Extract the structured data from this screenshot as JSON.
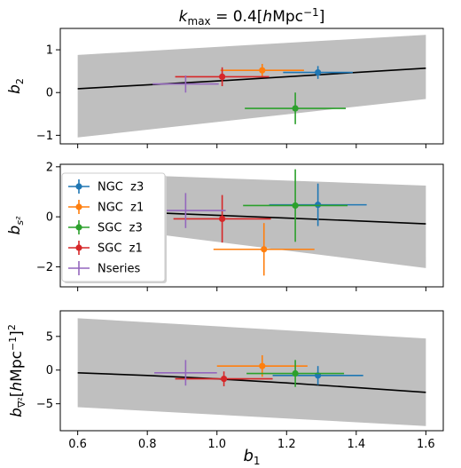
{
  "chart_data": {
    "type": "scatter",
    "title": {
      "base": "k",
      "sub": "max",
      "rest": " = 0.4[",
      "h": "h",
      "unit": "Mpc",
      "sup": "−1",
      "close": "]"
    },
    "xlabel": {
      "base": "b",
      "sub": "1"
    },
    "xlim": [
      0.55,
      1.65
    ],
    "xticks": [
      0.6,
      0.8,
      1.0,
      1.2,
      1.4,
      1.6
    ],
    "xtick_labels": [
      "0.6",
      "0.8",
      "1.0",
      "1.2",
      "1.4",
      "1.6"
    ],
    "legend": {
      "placement": "left",
      "entries": [
        {
          "label": "NGC  z3",
          "color": "#1f77b4",
          "marker": "circle"
        },
        {
          "label": "NGC  z1",
          "color": "#ff7f0e",
          "marker": "circle"
        },
        {
          "label": "SGC  z3",
          "color": "#2ca02c",
          "marker": "circle"
        },
        {
          "label": "SGC  z1",
          "color": "#d62728",
          "marker": "circle"
        },
        {
          "label": "Nseries",
          "color": "#9467bd",
          "marker": "plus"
        }
      ]
    },
    "panels": [
      {
        "ylabel": {
          "base": "b",
          "sub": "2"
        },
        "ylim": [
          -1.2,
          1.5
        ],
        "yticks": [
          -1,
          0,
          1
        ],
        "ytick_labels": [
          "−1",
          "0",
          "1"
        ],
        "band": {
          "x": [
            0.6,
            1.6
          ],
          "lower": [
            -1.05,
            -0.15
          ],
          "upper": [
            0.88,
            1.35
          ],
          "color": "#bfbfbf"
        },
        "curve": {
          "x": [
            0.6,
            0.8,
            1.0,
            1.2,
            1.4,
            1.6
          ],
          "y": [
            0.09,
            0.18,
            0.27,
            0.37,
            0.47,
            0.57
          ],
          "color": "#000000"
        },
        "points": [
          {
            "series": "NGC  z3",
            "x": 1.29,
            "y": 0.47,
            "xerr": 0.1,
            "yerr": 0.15
          },
          {
            "series": "NGC  z1",
            "x": 1.13,
            "y": 0.52,
            "xerr": 0.12,
            "yerr": 0.15
          },
          {
            "series": "SGC  z3",
            "x": 1.225,
            "y": -0.37,
            "xerr": 0.145,
            "yerr": 0.37
          },
          {
            "series": "SGC  z1",
            "x": 1.015,
            "y": 0.37,
            "xerr": 0.135,
            "yerr": 0.22
          },
          {
            "series": "Nseries",
            "x": 0.91,
            "y": 0.2,
            "xerr": 0.095,
            "yerr": 0.2
          }
        ]
      },
      {
        "ylabel": {
          "base": "b",
          "sub": "s²"
        },
        "ylim": [
          -2.8,
          2.1
        ],
        "yticks": [
          -2,
          0,
          2
        ],
        "ytick_labels": [
          "−2",
          "0",
          "2"
        ],
        "band": {
          "x": [
            0.6,
            1.6
          ],
          "lower": [
            -0.3,
            -2.05
          ],
          "upper": [
            1.75,
            1.25
          ],
          "color": "#bfbfbf"
        },
        "curve": {
          "x": [
            0.6,
            0.8,
            1.0,
            1.2,
            1.4,
            1.6
          ],
          "y": [
            0.28,
            0.17,
            0.06,
            -0.05,
            -0.16,
            -0.28
          ],
          "color": "#000000"
        },
        "points": [
          {
            "series": "NGC  z3",
            "x": 1.29,
            "y": 0.48,
            "xerr": 0.14,
            "yerr": 0.85
          },
          {
            "series": "NGC  z1",
            "x": 1.135,
            "y": -1.3,
            "xerr": 0.145,
            "yerr": 1.05
          },
          {
            "series": "SGC  z3",
            "x": 1.225,
            "y": 0.45,
            "xerr": 0.15,
            "yerr": 1.45
          },
          {
            "series": "SGC  z1",
            "x": 1.015,
            "y": -0.08,
            "xerr": 0.14,
            "yerr": 0.95
          },
          {
            "series": "Nseries",
            "x": 0.91,
            "y": 0.25,
            "xerr": 0.115,
            "yerr": 0.7
          }
        ]
      },
      {
        "ylabel": {
          "base": "b",
          "sub": "∇²",
          "rest": "[",
          "h": "h",
          "unit": "Mpc",
          "sup1": "−1",
          "close": "]",
          "sup2": "2"
        },
        "ylim": [
          -9,
          8.8
        ],
        "yticks": [
          -5,
          0,
          5
        ],
        "ytick_labels": [
          "−5",
          "0",
          "5"
        ],
        "band": {
          "x": [
            0.6,
            1.6
          ],
          "lower": [
            -5.5,
            -8.3
          ],
          "upper": [
            7.7,
            4.7
          ],
          "color": "#bfbfbf"
        },
        "curve": {
          "x": [
            0.6,
            0.8,
            1.0,
            1.2,
            1.4,
            1.6
          ],
          "y": [
            -0.4,
            -0.8,
            -1.3,
            -1.9,
            -2.6,
            -3.3
          ],
          "color": "#000000"
        },
        "points": [
          {
            "series": "NGC  z3",
            "x": 1.29,
            "y": -0.8,
            "xerr": 0.13,
            "yerr": 1.4
          },
          {
            "series": "NGC  z1",
            "x": 1.13,
            "y": 0.6,
            "xerr": 0.13,
            "yerr": 1.6
          },
          {
            "series": "SGC  z3",
            "x": 1.225,
            "y": -0.5,
            "xerr": 0.14,
            "yerr": 2.0
          },
          {
            "series": "SGC  z1",
            "x": 1.02,
            "y": -1.3,
            "xerr": 0.14,
            "yerr": 1.1
          },
          {
            "series": "Nseries",
            "x": 0.91,
            "y": -0.4,
            "xerr": 0.09,
            "yerr": 1.9
          }
        ]
      }
    ]
  }
}
